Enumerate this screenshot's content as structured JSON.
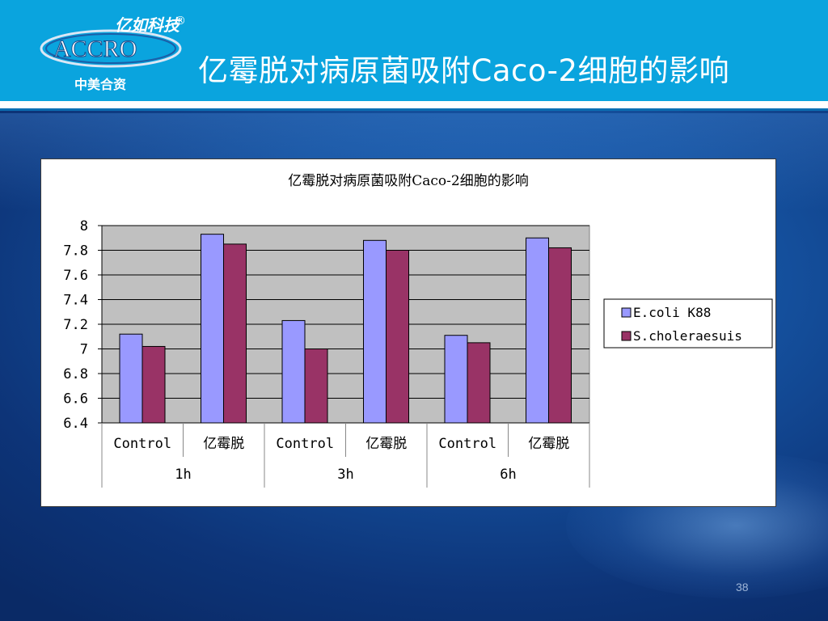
{
  "slide": {
    "title": "亿霉脱对病原菌吸附Caco-2细胞的影响",
    "page_number": "38",
    "logo": {
      "brand_cn": "亿如科技",
      "brand_en": "ACCRO",
      "registered": "®",
      "subtitle": "中美合资"
    },
    "colors": {
      "header": "#0aa4de",
      "background": "#144f9c"
    }
  },
  "chart_data": {
    "type": "bar",
    "title": "亿霉脱对病原菌吸附Caco-2细胞的影响",
    "categories": [
      "Control",
      "亿霉脱",
      "Control",
      "亿霉脱",
      "Control",
      "亿霉脱"
    ],
    "groups": [
      {
        "label": "1h",
        "categories": [
          "Control",
          "亿霉脱"
        ]
      },
      {
        "label": "3h",
        "categories": [
          "Control",
          "亿霉脱"
        ]
      },
      {
        "label": "6h",
        "categories": [
          "Control",
          "亿霉脱"
        ]
      }
    ],
    "series": [
      {
        "name": "E.coli K88",
        "color": "#9999ff",
        "values": [
          7.12,
          7.93,
          7.23,
          7.88,
          7.11,
          7.9
        ]
      },
      {
        "name": "S.choleraesuis",
        "color": "#993366",
        "values": [
          7.02,
          7.85,
          7.0,
          7.8,
          7.05,
          7.82
        ]
      }
    ],
    "ylim": [
      6.4,
      8.0
    ],
    "yticks": [
      "6.4",
      "6.6",
      "6.8",
      "7",
      "7.2",
      "7.4",
      "7.6",
      "7.8",
      "8"
    ],
    "xlabel": "",
    "ylabel": "",
    "grid": true,
    "plot_background": "#c0c0c0",
    "legend_position": "right"
  }
}
